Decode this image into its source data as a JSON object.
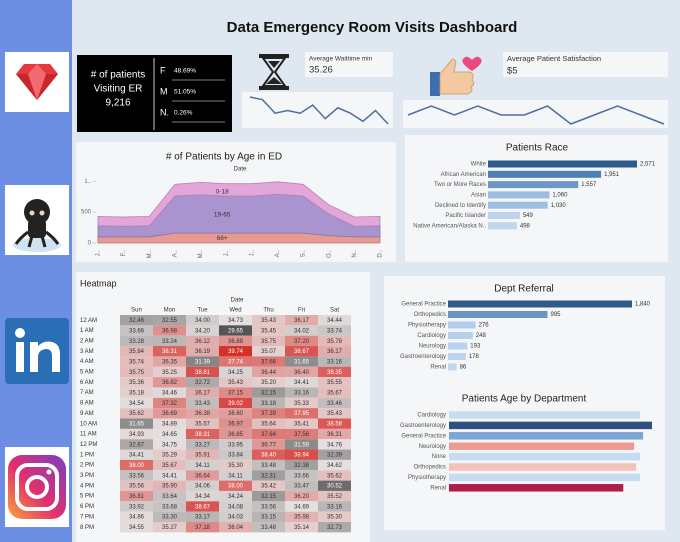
{
  "title": "Data Emergency Room Visits Dashboard",
  "kpi": {
    "label_lines": [
      "# of patients",
      "Visiting ER"
    ],
    "value": "9,216",
    "gender": [
      {
        "label": "F",
        "share": "48.69%"
      },
      {
        "label": "M",
        "share": "51.05%"
      },
      {
        "label": "N.",
        "share": "0.26%"
      }
    ]
  },
  "wait": {
    "label": "Average Waittime min",
    "value": "35.26"
  },
  "satisfaction": {
    "label": "Average Patient Satisfaction",
    "value": "$5"
  },
  "chart_data": [
    {
      "type": "sparkline",
      "color": "#4e6e9e",
      "values": [
        35.6,
        35.5,
        35.0,
        35.1,
        35.0,
        35.3,
        34.8,
        35.2,
        35.0,
        34.7,
        35.1,
        34.6
      ]
    },
    {
      "type": "sparkline",
      "color": "#4e6e9e",
      "values": [
        5.0,
        5.1,
        5.0,
        5.1,
        5.0,
        5.0,
        5.1,
        4.9,
        5.0,
        5.1,
        5.0,
        4.9
      ]
    },
    {
      "type": "area",
      "title": "# of Patients by Age in ED",
      "x_label": "Date",
      "categories": [
        "J..",
        "F..",
        "M..",
        "A..",
        "M..",
        "J..",
        "J..",
        "A..",
        "S..",
        "O..",
        "N..",
        "D.."
      ],
      "ylim": [
        0,
        1100
      ],
      "yticks": [
        0,
        500,
        {
          "value": 1000,
          "label": "1.."
        }
      ],
      "series": [
        {
          "name": "66+",
          "color": "#e79a92",
          "values": [
            100,
            100,
            100,
            160,
            160,
            160,
            160,
            160,
            160,
            120,
            100,
            100
          ]
        },
        {
          "name": "19-65",
          "color": "#a994cf",
          "values": [
            180,
            170,
            180,
            600,
            620,
            600,
            600,
            630,
            600,
            350,
            170,
            180
          ]
        },
        {
          "name": "0-18",
          "color": "#e2a6da",
          "values": [
            150,
            150,
            150,
            190,
            200,
            200,
            200,
            200,
            190,
            150,
            150,
            150
          ]
        }
      ]
    },
    {
      "type": "hbar",
      "title": "Patients Race",
      "categories": [
        "White",
        "African American",
        "Two or More Races",
        "Asian",
        "Declined to Identify",
        "Pacific Islander",
        "Native American/Alaska N.."
      ],
      "values": [
        2571,
        1951,
        1557,
        1060,
        1030,
        549,
        498
      ],
      "value_labels": [
        "2,571",
        "1,951",
        "1,557",
        "1,060",
        "1,030",
        "549",
        "498"
      ],
      "colors": [
        "#2f5b8c",
        "#4d7eb6",
        "#6d97c6",
        "#9cbcdf",
        "#a0bfe0",
        "#bcd4ec",
        "#bfd6ed"
      ]
    },
    {
      "type": "hbar",
      "title": "Dept Referral",
      "categories": [
        "General Practice",
        "Orthopedics",
        "Physiotherapy",
        "Cardiology",
        "Neurology",
        "Gastroenterology",
        "Renal"
      ],
      "values": [
        1840,
        995,
        276,
        248,
        193,
        178,
        86
      ],
      "value_labels": [
        "1,840",
        "995",
        "276",
        "248",
        "193",
        "178",
        "86"
      ],
      "colors": [
        "#2f5b8c",
        "#6b94c4",
        "#b3cdea",
        "#b6cfea",
        "#bad2ec",
        "#bbd3ec",
        "#c2d7ee"
      ]
    },
    {
      "type": "hbar",
      "title": "Patients Age by Department",
      "categories": [
        "Cardiology",
        "Gastroenterology",
        "General Practice",
        "Neurology",
        "None",
        "Orthopedics",
        "Physiotherapy",
        "Renal"
      ],
      "values": [
        38.6,
        41.0,
        39.2,
        37.4,
        38.6,
        37.8,
        38.6,
        35.2
      ],
      "colors": [
        "#c7dcf0",
        "#2f4f80",
        "#7ea6d4",
        "#ee9c92",
        "#c7dcf0",
        "#f3c2bb",
        "#c7dcf0",
        "#b01e45"
      ]
    },
    {
      "type": "heatmap",
      "title": "Heatmap",
      "x_label": "Date",
      "columns": [
        "Sun",
        "Mon",
        "Tue",
        "Wed",
        "Thu",
        "Fri",
        "Sat"
      ],
      "rows": [
        "12 AM",
        "1 AM",
        "2 AM",
        "3 AM",
        "4 AM",
        "5 AM",
        "6 AM",
        "7 AM",
        "8 AM",
        "9 AM",
        "10 AM",
        "11 AM",
        "12 PM",
        "1 PM",
        "2 PM",
        "3 PM",
        "4 PM",
        "5 PM",
        "6 PM",
        "7 PM",
        "8 PM"
      ],
      "colors": {
        "low": "#555555",
        "mid": "#e6e0e0",
        "high": "#d6302b"
      },
      "values": [
        [
          32.46,
          32.55,
          34.0,
          34.73,
          35.43,
          36.17,
          34.44
        ],
        [
          33.66,
          36.98,
          34.2,
          29.65,
          35.45,
          34.02,
          33.74
        ],
        [
          33.28,
          33.24,
          36.12,
          36.88,
          35.75,
          37.2,
          35.78
        ],
        [
          35.84,
          38.31,
          36.19,
          39.74,
          35.07,
          38.67,
          36.17
        ],
        [
          35.74,
          36.35,
          31.39,
          37.74,
          37.66,
          31.65,
          33.16
        ],
        [
          35.75,
          35.25,
          38.81,
          34.25,
          36.44,
          36.4,
          38.35
        ],
        [
          35.36,
          36.82,
          32.72,
          35.43,
          35.2,
          34.41,
          35.55
        ],
        [
          35.18,
          34.46,
          36.17,
          37.15,
          32.15,
          33.16,
          35.67
        ],
        [
          34.54,
          37.32,
          33.43,
          39.02,
          33.18,
          35.33,
          33.46
        ],
        [
          35.62,
          36.69,
          36.38,
          36.6,
          37.39,
          37.95,
          35.43
        ],
        [
          31.65,
          34.89,
          35.57,
          36.97,
          35.64,
          35.41,
          38.58
        ],
        [
          34.93,
          34.65,
          38.31,
          36.85,
          37.64,
          37.56,
          36.31
        ],
        [
          32.67,
          34.75,
          33.27,
          33.95,
          36.77,
          31.59,
          34.76
        ],
        [
          34.41,
          35.29,
          35.91,
          33.84,
          38.4,
          38.94,
          32.39
        ],
        [
          38.0,
          35.67,
          34.11,
          35.3,
          33.48,
          32.38,
          34.62
        ],
        [
          33.56,
          34.41,
          36.64,
          34.11,
          32.31,
          33.66,
          35.62
        ],
        [
          35.56,
          35.9,
          34.06,
          38.0,
          35.42,
          33.47,
          30.52
        ],
        [
          36.81,
          33.64,
          34.34,
          34.24,
          32.15,
          36.2,
          35.52
        ],
        [
          33.92,
          33.68,
          38.67,
          34.08,
          33.56,
          34.69,
          33.16
        ],
        [
          34.86,
          33.3,
          33.17,
          34.03,
          33.15,
          35.98,
          35.3
        ],
        [
          34.55,
          35.27,
          37.18,
          36.04,
          33.48,
          35.14,
          32.73
        ]
      ],
      "value_labels": [
        [
          "32.46",
          "32.55",
          "34.00",
          "34.73",
          "35.43",
          "36.17",
          "34.44"
        ],
        [
          "33.66",
          "36.98",
          "34.20",
          "29.65",
          "35.45",
          "34.02",
          "33.74"
        ],
        [
          "33.28",
          "33.24",
          "36.12",
          "36.88",
          "35.75",
          "37.20",
          "35.78"
        ],
        [
          "35.84",
          "38.31",
          "36.19",
          "39.74",
          "35.07",
          "38.67",
          "36.17"
        ],
        [
          "35.74",
          "36.35",
          "31.39",
          "37.74",
          "37.66",
          "31.65",
          "33.16"
        ],
        [
          "35.75",
          "35.25",
          "38.81",
          "34.25",
          "36.44",
          "36.40",
          "38.35"
        ],
        [
          "35.36",
          "36.82",
          "32.72",
          "35.43",
          "35.20",
          "34.41",
          "35.55"
        ],
        [
          "35.18",
          "34.46",
          "36.17",
          "37.15",
          "32.15",
          "33.16",
          "35.67"
        ],
        [
          "34.54",
          "37.32",
          "33.43",
          "39.02",
          "33.18",
          "35.33",
          "33.46"
        ],
        [
          "35.62",
          "36.69",
          "36.38",
          "36.60",
          "37.39",
          "37.95",
          "35.43"
        ],
        [
          "31.65",
          "34.89",
          "35.57",
          "36.97",
          "35.64",
          "35.41",
          "38.58"
        ],
        [
          "34.93",
          "34.65",
          "38.31",
          "36.85",
          "37.64",
          "37.56",
          "36.31"
        ],
        [
          "32.67",
          "34.75",
          "33.27",
          "33.95",
          "36.77",
          "31.59",
          "34.76"
        ],
        [
          "34.41",
          "35.29",
          "35.91",
          "33.84",
          "38.40",
          "38.94",
          "32.39"
        ],
        [
          "38.00",
          "35.67",
          "34.11",
          "35.30",
          "33.48",
          "32.38",
          "34.62"
        ],
        [
          "33.56",
          "34.41",
          "36.64",
          "34.11",
          "32.31",
          "33.66",
          "35.62"
        ],
        [
          "35.56",
          "35.90",
          "34.06",
          "38.00",
          "35.42",
          "33.47",
          "30.52"
        ],
        [
          "36.81",
          "33.64",
          "34.34",
          "34.24",
          "32.15",
          "36.20",
          "35.52"
        ],
        [
          "33.92",
          "33.68",
          "38.67",
          "34.08",
          "33.56",
          "34.69",
          "33.16"
        ],
        [
          "34.86",
          "33.30",
          "33.17",
          "34.03",
          "33.15",
          "35.98",
          "35.30"
        ],
        [
          "34.55",
          "35.27",
          "37.18",
          "36.04",
          "33.48",
          "35.14",
          "32.73"
        ]
      ]
    }
  ]
}
